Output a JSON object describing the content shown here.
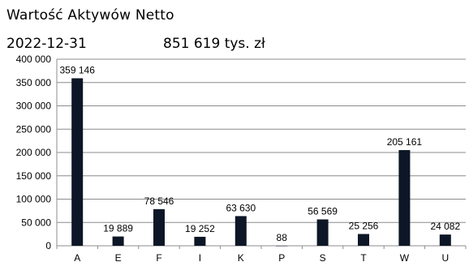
{
  "header": {
    "title": "Wartość Aktywów Netto",
    "date": "2022-12-31",
    "nav_total": "851 619 tys. zł"
  },
  "colors": {
    "bar": "#0d1626",
    "grid": "#8c8c8c",
    "axis": "#8c8c8c"
  },
  "chart_data": {
    "type": "bar",
    "categories": [
      "A",
      "E",
      "F",
      "I",
      "K",
      "P",
      "S",
      "T",
      "W",
      "U"
    ],
    "values": [
      359146,
      19889,
      78546,
      19252,
      63630,
      88,
      56569,
      25256,
      205161,
      24082
    ],
    "value_labels": [
      "359 146",
      "19 889",
      "78 546",
      "19 252",
      "63 630",
      "88",
      "56 569",
      "25 256",
      "205 161",
      "24 082"
    ],
    "ylim": [
      0,
      400000
    ],
    "yticks": [
      0,
      50000,
      100000,
      150000,
      200000,
      250000,
      300000,
      350000,
      400000
    ],
    "ytick_labels": [
      "0",
      "50 000",
      "100 000",
      "150 000",
      "200 000",
      "250 000",
      "300 000",
      "350 000",
      "400 000"
    ],
    "grid": true,
    "legend": "none"
  }
}
